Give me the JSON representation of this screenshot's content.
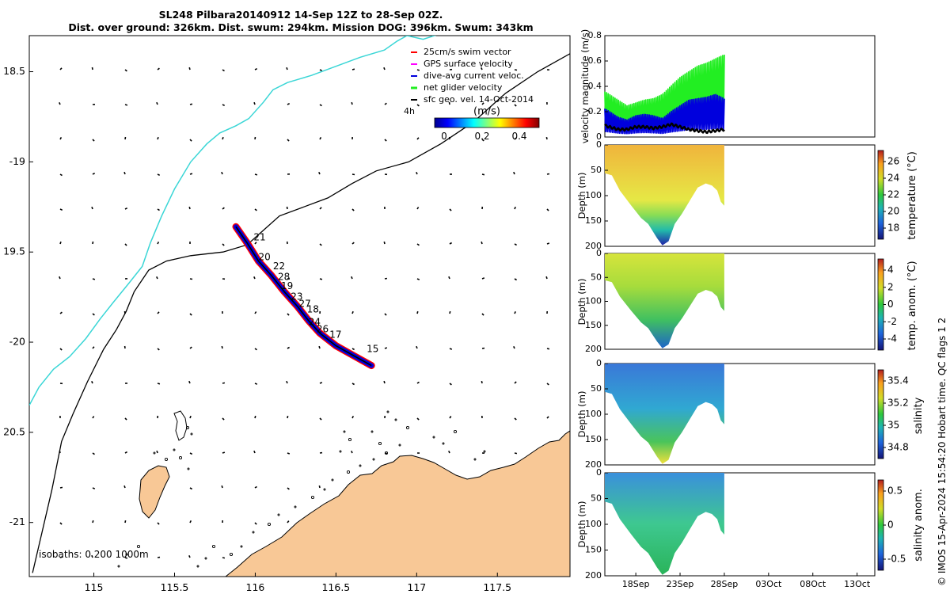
{
  "header": {
    "line1": "SL248 Pilbara20140912 14-Sep 12Z to 28-Sep 02Z.",
    "line2": "Dist. over ground: 326km. Dist. swum: 294km. Mission DOG: 396km. Swum: 343km"
  },
  "credit": "© IMOS 15-Apr-2024 15:54:20 Hobart time. QC flags 1  2",
  "colors": {
    "land": "#f8c896",
    "coast": "#000000",
    "isobath_200": "#000000",
    "isobath_1000": "#3ad6d6",
    "swim": "#ff0000",
    "gps": "#ff00ff",
    "current": "#0000dd",
    "net": "#22ee22",
    "geo": "#000000"
  },
  "chart_data": [
    {
      "type": "map",
      "xlim": [
        114.6,
        117.95
      ],
      "ylim": [
        -21.3,
        -18.3
      ],
      "x_ticks": [
        115,
        115.5,
        116,
        116.5,
        117,
        117.5
      ],
      "x_tick_labels": [
        "115",
        "115.5",
        "116",
        "116.5",
        "117",
        "117.5"
      ],
      "y_ticks": [
        -18.5,
        -19,
        -19.5,
        -20,
        -20.5,
        -21
      ],
      "y_tick_labels": [
        "18.5",
        "-19",
        "19.5",
        "-20",
        "20.5",
        "-21"
      ],
      "legend": {
        "items": [
          "25cm/s swim vector",
          "GPS surface velocity",
          "dive-avg current veloc.",
          "net glider velocity",
          "sfc geo. vel. 14-Oct-2014"
        ],
        "scale_label": "4h",
        "colorbar_title": "(m/s)",
        "colorbar_ticks": [
          "0",
          "0.2",
          "0.4"
        ]
      },
      "isobaths_label": "isobaths: 0   200  1000m",
      "day_labels": [
        {
          "text": "21",
          "lon": 115.99,
          "lat": -19.42
        },
        {
          "text": "20",
          "lon": 116.02,
          "lat": -19.53
        },
        {
          "text": "22",
          "lon": 116.11,
          "lat": -19.58
        },
        {
          "text": "28",
          "lon": 116.14,
          "lat": -19.64
        },
        {
          "text": "19",
          "lon": 116.16,
          "lat": -19.69
        },
        {
          "text": "23",
          "lon": 116.22,
          "lat": -19.75
        },
        {
          "text": "27",
          "lon": 116.27,
          "lat": -19.79
        },
        {
          "text": "18",
          "lon": 116.32,
          "lat": -19.82
        },
        {
          "text": "24",
          "lon": 116.33,
          "lat": -19.89
        },
        {
          "text": "26",
          "lon": 116.38,
          "lat": -19.93
        },
        {
          "text": "17",
          "lon": 116.46,
          "lat": -19.96
        },
        {
          "text": "15",
          "lon": 116.69,
          "lat": -20.04
        }
      ],
      "track": [
        {
          "lon": 115.88,
          "lat": -19.36
        },
        {
          "lon": 115.95,
          "lat": -19.45
        },
        {
          "lon": 116.02,
          "lat": -19.55
        },
        {
          "lon": 116.1,
          "lat": -19.63
        },
        {
          "lon": 116.18,
          "lat": -19.72
        },
        {
          "lon": 116.26,
          "lat": -19.8
        },
        {
          "lon": 116.33,
          "lat": -19.88
        },
        {
          "lon": 116.4,
          "lat": -19.95
        },
        {
          "lon": 116.5,
          "lat": -20.02
        },
        {
          "lon": 116.6,
          "lat": -20.07
        },
        {
          "lon": 116.72,
          "lat": -20.13
        }
      ],
      "isobath_200": [
        [
          114.62,
          -21.28
        ],
        [
          114.68,
          -21.05
        ],
        [
          114.74,
          -20.82
        ],
        [
          114.8,
          -20.55
        ],
        [
          114.87,
          -20.4
        ],
        [
          114.96,
          -20.22
        ],
        [
          115.06,
          -20.04
        ],
        [
          115.14,
          -19.93
        ],
        [
          115.2,
          -19.83
        ],
        [
          115.25,
          -19.72
        ],
        [
          115.34,
          -19.6
        ],
        [
          115.45,
          -19.55
        ],
        [
          115.6,
          -19.52
        ],
        [
          115.8,
          -19.5
        ],
        [
          115.95,
          -19.46
        ],
        [
          116.05,
          -19.38
        ],
        [
          116.15,
          -19.3
        ],
        [
          116.3,
          -19.25
        ],
        [
          116.45,
          -19.2
        ],
        [
          116.6,
          -19.12
        ],
        [
          116.75,
          -19.05
        ],
        [
          116.95,
          -19.0
        ],
        [
          117.15,
          -18.9
        ],
        [
          117.35,
          -18.78
        ],
        [
          117.55,
          -18.62
        ],
        [
          117.75,
          -18.5
        ],
        [
          117.95,
          -18.4
        ]
      ],
      "isobath_1000": [
        [
          114.6,
          -20.35
        ],
        [
          114.66,
          -20.25
        ],
        [
          114.75,
          -20.15
        ],
        [
          114.85,
          -20.08
        ],
        [
          114.95,
          -19.98
        ],
        [
          115.04,
          -19.87
        ],
        [
          115.12,
          -19.78
        ],
        [
          115.22,
          -19.67
        ],
        [
          115.3,
          -19.58
        ],
        [
          115.35,
          -19.45
        ],
        [
          115.42,
          -19.3
        ],
        [
          115.5,
          -19.15
        ],
        [
          115.6,
          -19.0
        ],
        [
          115.7,
          -18.9
        ],
        [
          115.78,
          -18.84
        ],
        [
          115.88,
          -18.8
        ],
        [
          115.96,
          -18.76
        ],
        [
          116.05,
          -18.67
        ],
        [
          116.11,
          -18.6
        ],
        [
          116.2,
          -18.56
        ],
        [
          116.35,
          -18.52
        ],
        [
          116.5,
          -18.47
        ],
        [
          116.65,
          -18.42
        ],
        [
          116.8,
          -18.38
        ],
        [
          116.88,
          -18.33
        ],
        [
          116.94,
          -18.3
        ],
        [
          117.04,
          -18.32
        ],
        [
          117.18,
          -18.28
        ],
        [
          117.3,
          -18.23
        ],
        [
          117.45,
          -18.16
        ]
      ]
    },
    {
      "type": "line",
      "ylabel": "velocity magnitude (m/s)",
      "ylim": [
        0,
        0.8
      ],
      "y_ticks": [
        0,
        0.2,
        0.4,
        0.6,
        0.8
      ],
      "xlim_day": [
        14.5,
        45
      ],
      "series": [
        {
          "color": "#22ee22",
          "x": [
            14.5,
            15,
            16,
            17,
            18,
            19,
            20,
            21,
            22,
            23,
            24,
            25,
            26,
            27,
            28
          ],
          "values": [
            0.32,
            0.3,
            0.26,
            0.22,
            0.24,
            0.26,
            0.27,
            0.3,
            0.36,
            0.42,
            0.46,
            0.5,
            0.52,
            0.55,
            0.58
          ]
        },
        {
          "color": "#0000dd",
          "x": [
            14.5,
            15,
            16,
            17,
            18,
            19,
            20,
            21,
            22,
            23,
            24,
            25,
            26,
            27,
            28
          ],
          "values": [
            0.2,
            0.18,
            0.14,
            0.12,
            0.15,
            0.16,
            0.15,
            0.13,
            0.18,
            0.22,
            0.26,
            0.27,
            0.28,
            0.3,
            0.27
          ]
        },
        {
          "color": "#000000",
          "x": [
            14.5,
            15,
            16,
            17,
            18,
            19,
            20,
            21,
            22,
            23,
            24,
            25,
            26,
            27,
            28
          ],
          "values": [
            0.09,
            0.08,
            0.06,
            0.06,
            0.08,
            0.08,
            0.07,
            0.08,
            0.1,
            0.08,
            0.06,
            0.05,
            0.04,
            0.05,
            0.06
          ]
        }
      ]
    },
    {
      "type": "heatmap",
      "ylabel": "Depth (m)",
      "colorbar_label": "temperature (°C)",
      "colorbar_ticks": [
        "26",
        "24",
        "22",
        "20",
        "18"
      ],
      "y_ticks": [
        "0",
        "50",
        "100",
        "150",
        "200"
      ]
    },
    {
      "type": "heatmap",
      "ylabel": "Depth (m)",
      "colorbar_label": "temp. anom. (°C)",
      "colorbar_ticks": [
        "4",
        "2",
        "0",
        "-2",
        "-4"
      ],
      "y_ticks": [
        "0",
        "50",
        "100",
        "150",
        "200"
      ]
    },
    {
      "type": "heatmap",
      "ylabel": "Depth (m)",
      "colorbar_label": "salinity",
      "colorbar_ticks": [
        "35.4",
        "35.2",
        "35",
        "34.8"
      ],
      "y_ticks": [
        "0",
        "50",
        "100",
        "150",
        "200"
      ]
    },
    {
      "type": "heatmap",
      "ylabel": "Depth (m)",
      "colorbar_label": "salinity anom.",
      "colorbar_ticks": [
        "0.5",
        "0",
        "-0.5"
      ],
      "y_ticks": [
        "0",
        "50",
        "100",
        "150",
        "200"
      ],
      "x_tick_labels": [
        "18Sep",
        "23Sep",
        "28Sep",
        "03Oct",
        "08Oct",
        "13Oct"
      ]
    }
  ]
}
